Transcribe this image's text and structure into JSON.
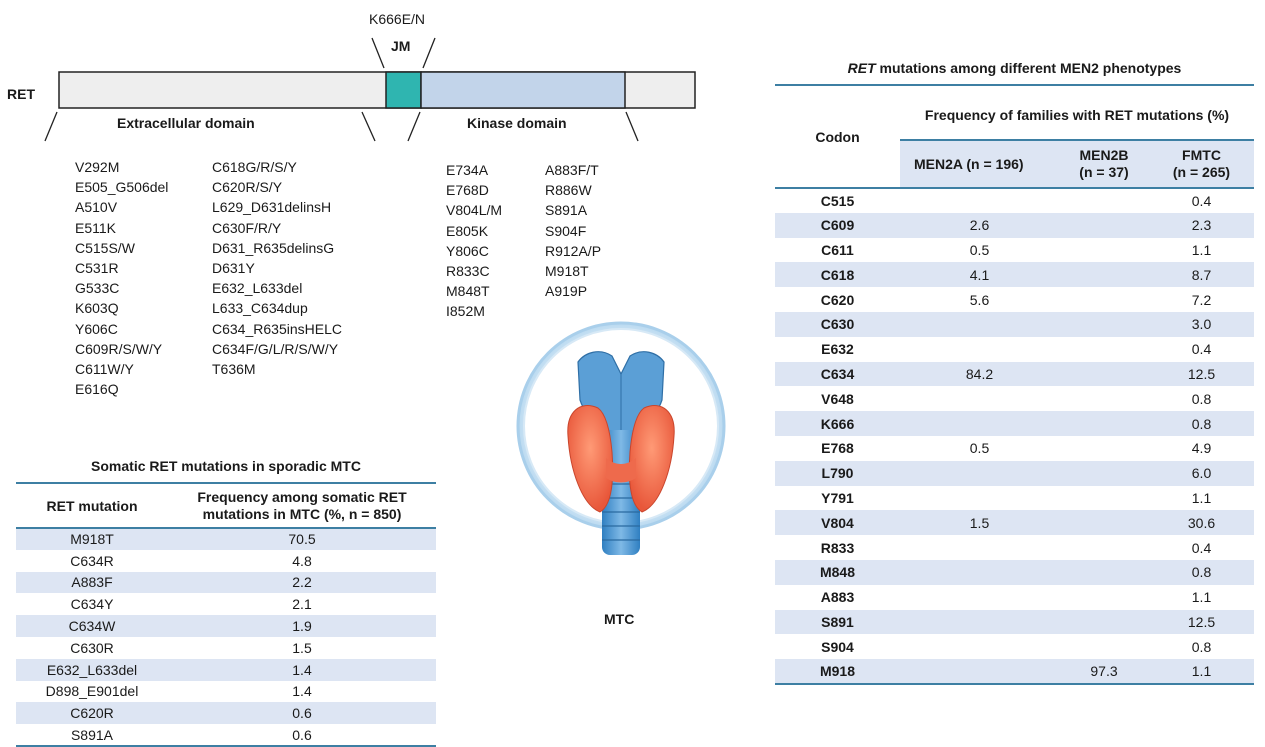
{
  "diagram": {
    "protein_label": "RET",
    "jm_mutation": "K666E/N",
    "jm_label": "JM",
    "extracellular_label": "Extracellular domain",
    "kinase_label": "Kinase domain",
    "colors": {
      "jm": "#2fb5b0",
      "kinase": "#c2d4ea",
      "bar": "#eeeeee",
      "rule": "#3d7fa3",
      "stripe": "#dde5f3"
    }
  },
  "extracellular_mutations": {
    "col1": [
      "V292M",
      "E505_G506del",
      "A510V",
      "E511K",
      "C515S/W",
      "C531R",
      "G533C",
      "K603Q",
      "Y606C",
      "C609R/S/W/Y",
      "C611W/Y",
      "E616Q"
    ],
    "col2": [
      "C618G/R/S/Y",
      "C620R/S/Y",
      "L629_D631delinsH",
      "C630F/R/Y",
      "D631_R635delinsG",
      "D631Y",
      "E632_L633del",
      "L633_C634dup",
      "C634_R635insHELC",
      "C634F/G/L/R/S/W/Y",
      "T636M"
    ]
  },
  "kinase_mutations": {
    "col1": [
      "E734A",
      "E768D",
      "V804L/M",
      "E805K",
      "Y806C",
      "R833C",
      "M848T",
      "I852M"
    ],
    "col2": [
      "A883F/T",
      "R886W",
      "S891A",
      "S904F",
      "R912A/P",
      "M918T",
      "A919P"
    ]
  },
  "thyroid": {
    "label": "MTC",
    "icon": "thyroid-illustration"
  },
  "somatic_table": {
    "title": "Somatic RET mutations in sporadic MTC",
    "col1_header": "RET mutation",
    "col2_header_line1": "Frequency among somatic RET",
    "col2_header_line2": "mutations in MTC (%, n = 850)",
    "rows": [
      {
        "mutation": "M918T",
        "freq": "70.5"
      },
      {
        "mutation": "C634R",
        "freq": "4.8"
      },
      {
        "mutation": "A883F",
        "freq": "2.2"
      },
      {
        "mutation": "C634Y",
        "freq": "2.1"
      },
      {
        "mutation": "C634W",
        "freq": "1.9"
      },
      {
        "mutation": "C630R",
        "freq": "1.5"
      },
      {
        "mutation": "E632_L633del",
        "freq": "1.4"
      },
      {
        "mutation": "D898_E901del",
        "freq": "1.4"
      },
      {
        "mutation": "C620R",
        "freq": "0.6"
      },
      {
        "mutation": "S891A",
        "freq": "0.6"
      }
    ]
  },
  "codon_table": {
    "title_italic": "RET",
    "title_rest": " mutations among different MEN2 phenotypes",
    "codon_header": "Codon",
    "freq_header": "Frequency of families with RET mutations (%)",
    "men2a_header": "MEN2A (n = 196)",
    "men2b_header_line1": "MEN2B",
    "men2b_header_line2": "(n = 37)",
    "fmtc_header_line1": "FMTC",
    "fmtc_header_line2": "(n = 265)",
    "rows": [
      {
        "codon": "C515",
        "men2a": "",
        "men2b": "",
        "fmtc": "0.4"
      },
      {
        "codon": "C609",
        "men2a": "2.6",
        "men2b": "",
        "fmtc": "2.3"
      },
      {
        "codon": "C611",
        "men2a": "0.5",
        "men2b": "",
        "fmtc": "1.1"
      },
      {
        "codon": "C618",
        "men2a": "4.1",
        "men2b": "",
        "fmtc": "8.7"
      },
      {
        "codon": "C620",
        "men2a": "5.6",
        "men2b": "",
        "fmtc": "7.2"
      },
      {
        "codon": "C630",
        "men2a": "",
        "men2b": "",
        "fmtc": "3.0"
      },
      {
        "codon": "E632",
        "men2a": "",
        "men2b": "",
        "fmtc": "0.4"
      },
      {
        "codon": "C634",
        "men2a": "84.2",
        "men2b": "",
        "fmtc": "12.5"
      },
      {
        "codon": "V648",
        "men2a": "",
        "men2b": "",
        "fmtc": "0.8"
      },
      {
        "codon": "K666",
        "men2a": "",
        "men2b": "",
        "fmtc": "0.8"
      },
      {
        "codon": "E768",
        "men2a": "0.5",
        "men2b": "",
        "fmtc": "4.9"
      },
      {
        "codon": "L790",
        "men2a": "",
        "men2b": "",
        "fmtc": "6.0"
      },
      {
        "codon": "Y791",
        "men2a": "",
        "men2b": "",
        "fmtc": "1.1"
      },
      {
        "codon": "V804",
        "men2a": "1.5",
        "men2b": "",
        "fmtc": "30.6"
      },
      {
        "codon": "R833",
        "men2a": "",
        "men2b": "",
        "fmtc": "0.4"
      },
      {
        "codon": "M848",
        "men2a": "",
        "men2b": "",
        "fmtc": "0.8"
      },
      {
        "codon": "A883",
        "men2a": "",
        "men2b": "",
        "fmtc": "1.1"
      },
      {
        "codon": "S891",
        "men2a": "",
        "men2b": "",
        "fmtc": "12.5"
      },
      {
        "codon": "S904",
        "men2a": "",
        "men2b": "",
        "fmtc": "0.8"
      },
      {
        "codon": "M918",
        "men2a": "",
        "men2b": "97.3",
        "fmtc": "1.1"
      }
    ]
  }
}
